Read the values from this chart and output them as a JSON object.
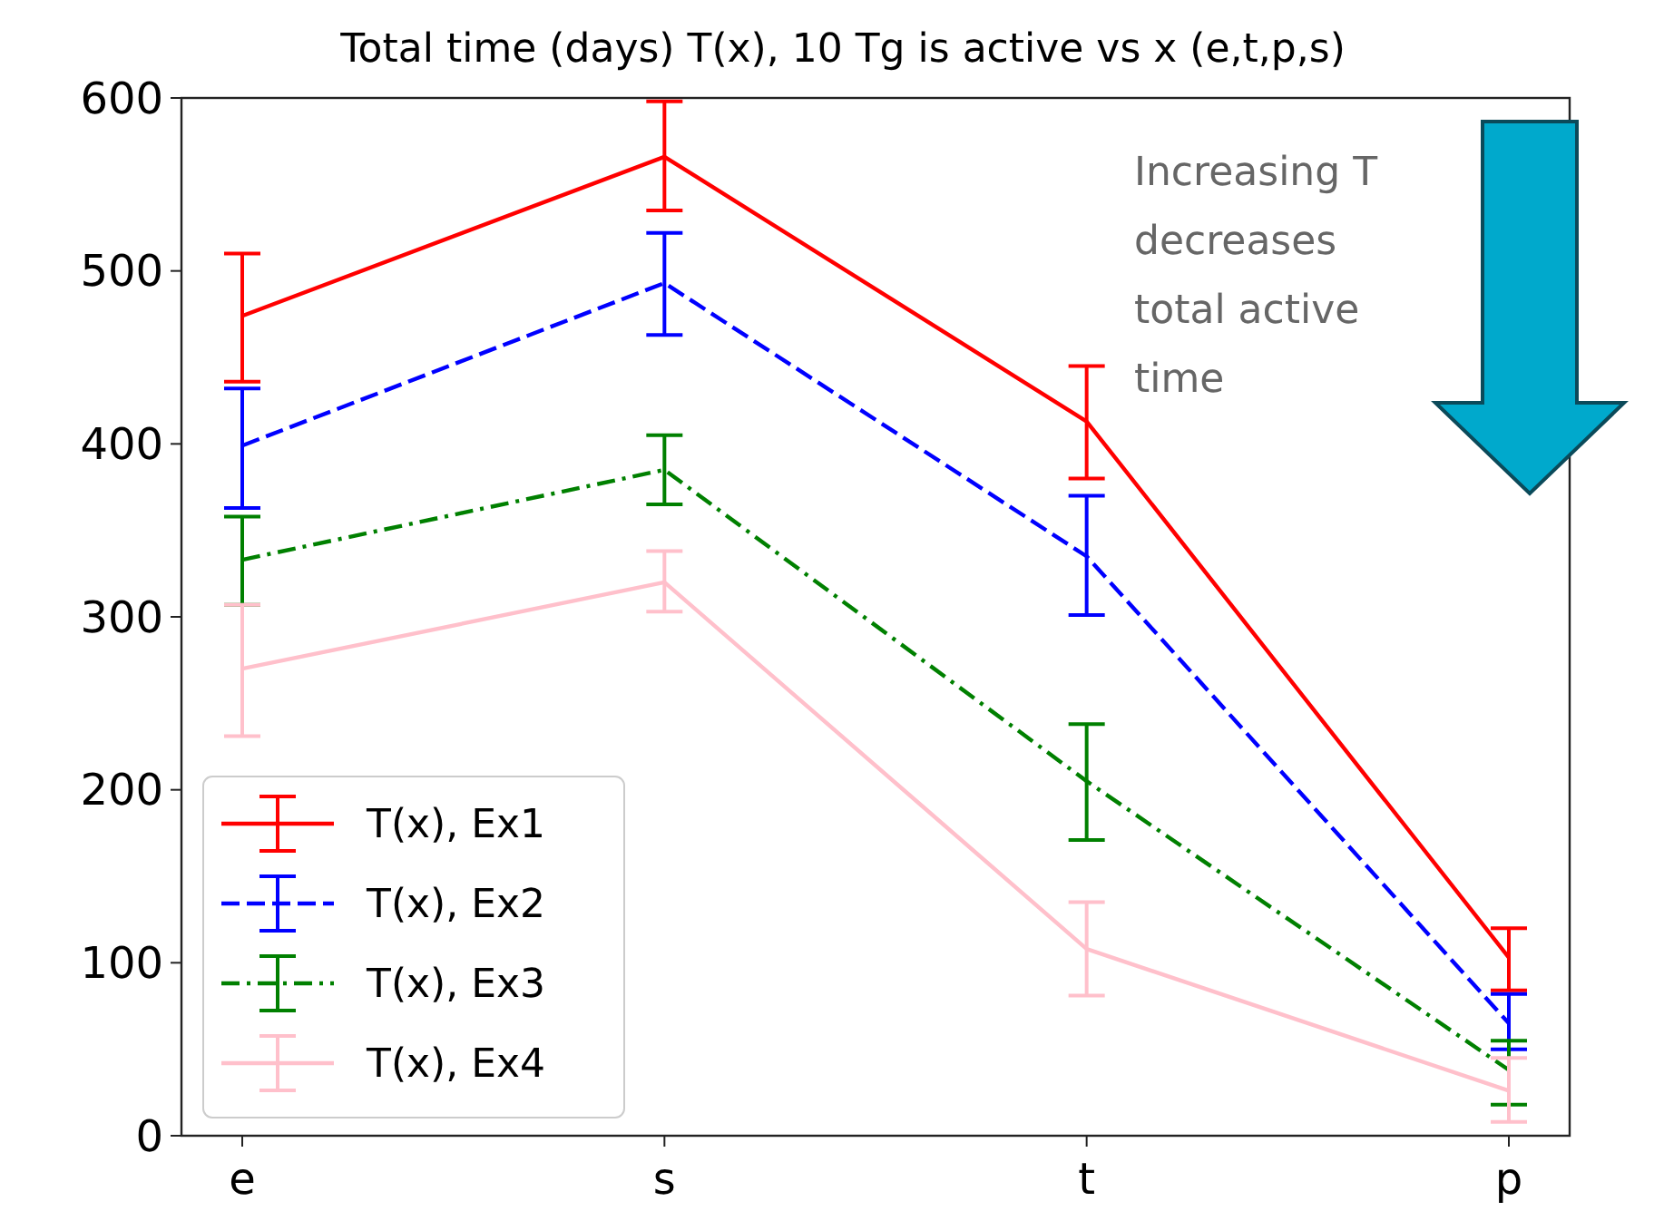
{
  "chart_data": {
    "type": "line",
    "title": "Total time (days) T(x), 10 Tg is active vs x (e,t,p,s)",
    "categories": [
      "e",
      "s",
      "t",
      "p"
    ],
    "ylim": [
      0,
      600
    ],
    "yticks": [
      0,
      100,
      200,
      300,
      400,
      500,
      600
    ],
    "grid": false,
    "legend": "bottom left",
    "annotations": [
      "Increasing T decreases total active time"
    ],
    "series": [
      {
        "name": "T(x), Ex1",
        "color": "#ff0000",
        "line_style": "solid",
        "values": [
          474,
          566,
          413,
          103
        ],
        "errors": [
          [
            436,
            510
          ],
          [
            535,
            598
          ],
          [
            380,
            445
          ],
          [
            84,
            120
          ]
        ]
      },
      {
        "name": "T(x), Ex2",
        "color": "#0000ff",
        "line_style": "dashed",
        "values": [
          399,
          493,
          335,
          65
        ],
        "errors": [
          [
            363,
            432
          ],
          [
            463,
            522
          ],
          [
            301,
            370
          ],
          [
            50,
            82
          ]
        ]
      },
      {
        "name": "T(x), Ex3",
        "color": "#008000",
        "line_style": "dashdot",
        "values": [
          333,
          385,
          205,
          38
        ],
        "errors": [
          [
            307,
            358
          ],
          [
            365,
            405
          ],
          [
            171,
            238
          ],
          [
            18,
            55
          ]
        ]
      },
      {
        "name": "T(x), Ex4",
        "color": "#ffc0cb",
        "line_style": "solid",
        "values": [
          270,
          320,
          108,
          26
        ],
        "errors": [
          [
            231,
            307
          ],
          [
            303,
            338
          ],
          [
            81,
            135
          ],
          [
            8,
            45
          ]
        ]
      }
    ]
  }
}
